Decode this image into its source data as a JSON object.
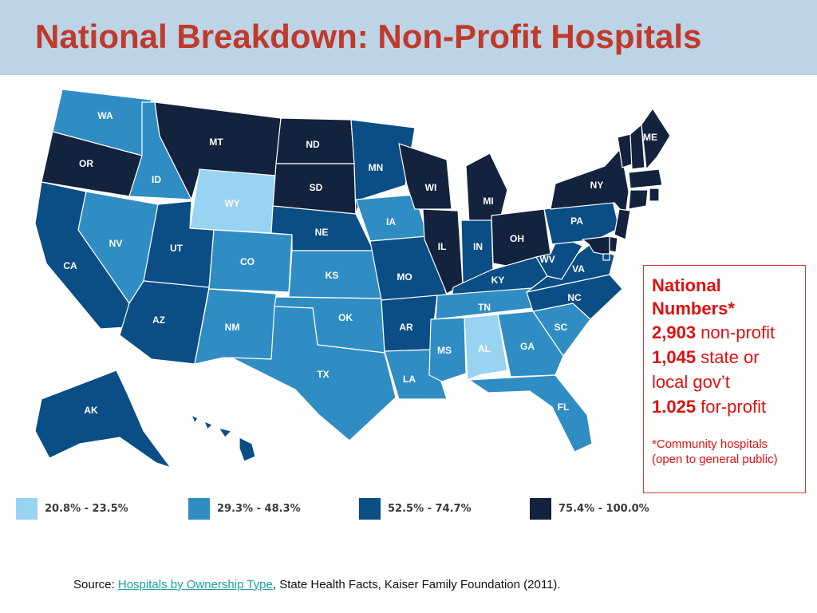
{
  "title": "National Breakdown: Non-Profit Hospitals",
  "map": {
    "colors": {
      "c1": "#99d3f2",
      "c2": "#2f8dc3",
      "c3": "#0b4d85",
      "c4": "#13223d"
    },
    "states": [
      {
        "code": "WA",
        "class": "c2"
      },
      {
        "code": "OR",
        "class": "c4"
      },
      {
        "code": "CA",
        "class": "c3"
      },
      {
        "code": "ID",
        "class": "c2"
      },
      {
        "code": "NV",
        "class": "c2"
      },
      {
        "code": "MT",
        "class": "c4"
      },
      {
        "code": "WY",
        "class": "c1"
      },
      {
        "code": "UT",
        "class": "c3"
      },
      {
        "code": "AZ",
        "class": "c3"
      },
      {
        "code": "CO",
        "class": "c2"
      },
      {
        "code": "NM",
        "class": "c2"
      },
      {
        "code": "ND",
        "class": "c4"
      },
      {
        "code": "SD",
        "class": "c4"
      },
      {
        "code": "NE",
        "class": "c3"
      },
      {
        "code": "KS",
        "class": "c2"
      },
      {
        "code": "OK",
        "class": "c2"
      },
      {
        "code": "TX",
        "class": "c2"
      },
      {
        "code": "MN",
        "class": "c3"
      },
      {
        "code": "IA",
        "class": "c2"
      },
      {
        "code": "MO",
        "class": "c3"
      },
      {
        "code": "AR",
        "class": "c3"
      },
      {
        "code": "LA",
        "class": "c2"
      },
      {
        "code": "WI",
        "class": "c4"
      },
      {
        "code": "IL",
        "class": "c4"
      },
      {
        "code": "MI",
        "class": "c4"
      },
      {
        "code": "IN",
        "class": "c3"
      },
      {
        "code": "OH",
        "class": "c4"
      },
      {
        "code": "KY",
        "class": "c3"
      },
      {
        "code": "TN",
        "class": "c2"
      },
      {
        "code": "MS",
        "class": "c2"
      },
      {
        "code": "AL",
        "class": "c1"
      },
      {
        "code": "GA",
        "class": "c2"
      },
      {
        "code": "FL",
        "class": "c2"
      },
      {
        "code": "SC",
        "class": "c2"
      },
      {
        "code": "NC",
        "class": "c3"
      },
      {
        "code": "VA",
        "class": "c3"
      },
      {
        "code": "WV",
        "class": "c3"
      },
      {
        "code": "PA",
        "class": "c3"
      },
      {
        "code": "NY",
        "class": "c4"
      },
      {
        "code": "VT",
        "class": "c4"
      },
      {
        "code": "NH",
        "class": "c4"
      },
      {
        "code": "ME",
        "class": "c4"
      },
      {
        "code": "MA",
        "class": "c4"
      },
      {
        "code": "RI",
        "class": "c4"
      },
      {
        "code": "CT",
        "class": "c4"
      },
      {
        "code": "NJ",
        "class": "c4"
      },
      {
        "code": "DE",
        "class": "c4"
      },
      {
        "code": "MD",
        "class": "c4"
      },
      {
        "code": "DC",
        "class": "c3"
      },
      {
        "code": "AK",
        "class": "c3"
      },
      {
        "code": "HI",
        "class": "c3"
      }
    ]
  },
  "legend": [
    {
      "label": "20.8% - 23.5%",
      "class": "c1"
    },
    {
      "label": "29.3% - 48.3%",
      "class": "c2"
    },
    {
      "label": "52.5% - 74.7%",
      "class": "c3"
    },
    {
      "label": "75.4% - 100.0%",
      "class": "c4"
    }
  ],
  "callout": {
    "heading": "National Numbers*",
    "rows": [
      {
        "value": "2,903",
        "text": " non-profit"
      },
      {
        "value": "1,045",
        "text": " state or local gov’t"
      },
      {
        "value": "1.025",
        "text": " for-profit"
      }
    ],
    "note": "*Community hospitals (open to general public)"
  },
  "source": {
    "prefix": "Source: ",
    "link_text": "Hospitals by Ownership Type",
    "suffix": ", State Health Facts, Kaiser Family Foundation (2011)."
  }
}
